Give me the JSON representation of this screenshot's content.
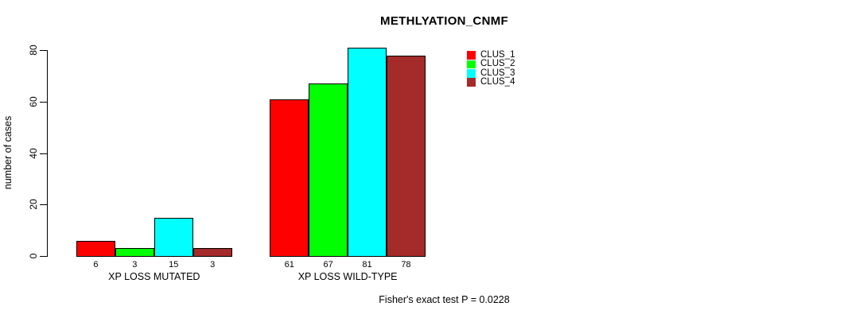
{
  "chart_data": {
    "type": "bar",
    "title": "METHLYATION_CNMF",
    "ylabel": "number of cases",
    "xlabel": "",
    "ylim": [
      0,
      80
    ],
    "yticks": [
      0,
      20,
      40,
      60,
      80
    ],
    "grid": false,
    "legend_position": "upper-right",
    "categories": [
      "XP LOSS MUTATED",
      "XP LOSS WILD-TYPE"
    ],
    "series": [
      {
        "name": "CLUS_1",
        "color": "#FF0000",
        "values": [
          6,
          61
        ]
      },
      {
        "name": "CLUS_2",
        "color": "#00FF00",
        "values": [
          3,
          67
        ]
      },
      {
        "name": "CLUS_3",
        "color": "#00FFFF",
        "values": [
          15,
          81
        ]
      },
      {
        "name": "CLUS_4",
        "color": "#A52A2A",
        "values": [
          3,
          78
        ]
      }
    ],
    "bar_value_labels": [
      [
        "6",
        "3",
        "15",
        "3"
      ],
      [
        "61",
        "67",
        "81",
        "78"
      ]
    ],
    "annotation": "Fisher's exact test P = 0.0228",
    "axis_color": "#000000",
    "background_color": "#FFFFFF"
  }
}
